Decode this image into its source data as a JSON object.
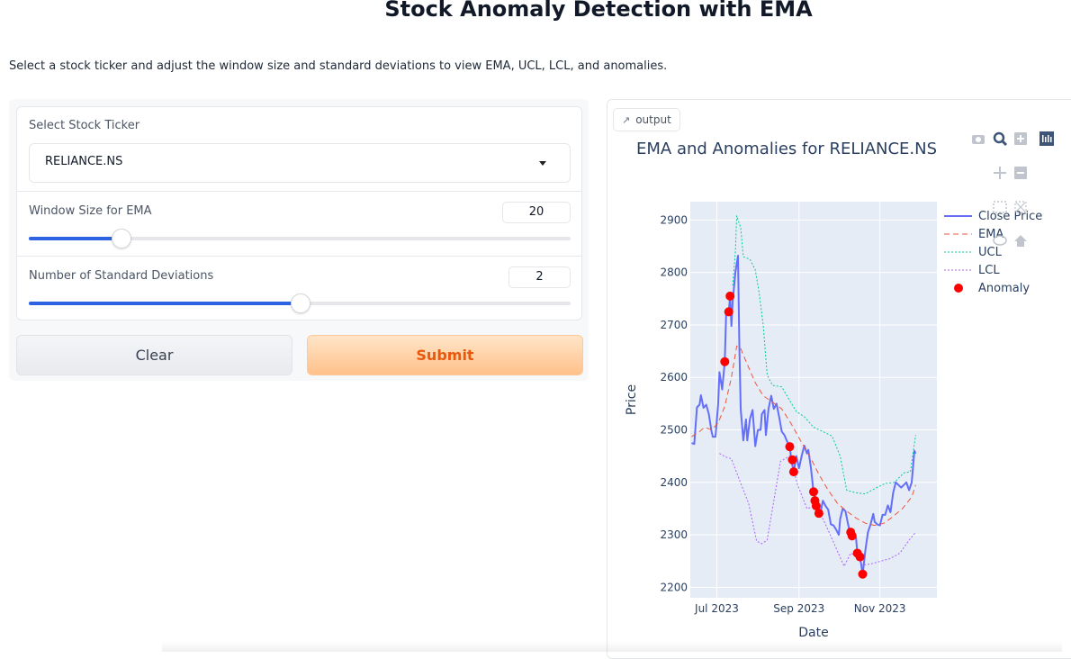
{
  "page": {
    "title": "Stock Anomaly Detection with EMA",
    "subtitle": "Select a stock ticker and adjust the window size and standard deviations to view EMA, UCL, LCL, and anomalies."
  },
  "form": {
    "ticker_label": "Select Stock Ticker",
    "ticker_value": "RELIANCE.NS",
    "window_label": "Window Size for EMA",
    "window_value": "20",
    "window_fraction": 0.17,
    "std_label": "Number of Standard Deviations",
    "std_value": "2",
    "std_fraction": 0.5
  },
  "buttons": {
    "clear": "Clear",
    "submit": "Submit"
  },
  "output": {
    "tab_label": "output",
    "tab_icon": "chart-icon"
  },
  "modebar": {
    "icons": [
      "camera-icon",
      "zoom-icon",
      "zoom-in-icon",
      "autoscale-icon",
      "pan-icon",
      "zoom-out-icon",
      "box-select-icon",
      "reset-axes-icon",
      "lasso-icon",
      "home-icon"
    ]
  },
  "colors": {
    "close": "#636efa",
    "ema": "#ef553b",
    "ucl": "#00cc96",
    "lcl": "#ab63fa",
    "anomaly": "#ff0000",
    "plot_bg": "#e5ecf6",
    "accent": "#2d62e3",
    "submit_text": "#ea580c"
  },
  "chart_data": {
    "type": "line",
    "title": "EMA and Anomalies for RELIANCE.NS",
    "xlabel": "Date",
    "ylabel": "Price",
    "x_range": [
      "2023-06-11",
      "2023-12-14"
    ],
    "ylim": [
      2180,
      2935
    ],
    "x_ticks": [
      {
        "date": "2023-07-01",
        "label": "Jul 2023"
      },
      {
        "date": "2023-09-01",
        "label": "Sep 2023"
      },
      {
        "date": "2023-11-01",
        "label": "Nov 2023"
      }
    ],
    "y_ticks": [
      2200,
      2300,
      2400,
      2500,
      2600,
      2700,
      2800,
      2900
    ],
    "grid": true,
    "legend_position": "right",
    "series": [
      {
        "name": "Close Price",
        "style": "solid",
        "points": [
          [
            "2023-06-12",
            2475
          ],
          [
            "2023-06-14",
            2473
          ],
          [
            "2023-06-16",
            2543
          ],
          [
            "2023-06-18",
            2548
          ],
          [
            "2023-06-19",
            2566
          ],
          [
            "2023-06-21",
            2542
          ],
          [
            "2023-06-23",
            2548
          ],
          [
            "2023-06-25",
            2530
          ],
          [
            "2023-06-27",
            2497
          ],
          [
            "2023-06-28",
            2487
          ],
          [
            "2023-06-30",
            2487
          ],
          [
            "2023-07-02",
            2548
          ],
          [
            "2023-07-03",
            2610
          ],
          [
            "2023-07-05",
            2577
          ],
          [
            "2023-07-07",
            2630
          ],
          [
            "2023-07-08",
            2720
          ],
          [
            "2023-07-10",
            2725
          ],
          [
            "2023-07-11",
            2755
          ],
          [
            "2023-07-12",
            2698
          ],
          [
            "2023-07-13",
            2745
          ],
          [
            "2023-07-15",
            2800
          ],
          [
            "2023-07-17",
            2832
          ],
          [
            "2023-07-18",
            2660
          ],
          [
            "2023-07-19",
            2540
          ],
          [
            "2023-07-21",
            2480
          ],
          [
            "2023-07-23",
            2520
          ],
          [
            "2023-07-24",
            2480
          ],
          [
            "2023-07-26",
            2521
          ],
          [
            "2023-07-28",
            2538
          ],
          [
            "2023-07-30",
            2469
          ],
          [
            "2023-08-01",
            2500
          ],
          [
            "2023-08-03",
            2500
          ],
          [
            "2023-08-04",
            2530
          ],
          [
            "2023-08-06",
            2538
          ],
          [
            "2023-08-07",
            2490
          ],
          [
            "2023-08-09",
            2540
          ],
          [
            "2023-08-11",
            2565
          ],
          [
            "2023-08-13",
            2540
          ],
          [
            "2023-08-15",
            2550
          ],
          [
            "2023-08-17",
            2525
          ],
          [
            "2023-08-19",
            2497
          ],
          [
            "2023-08-21",
            2490
          ],
          [
            "2023-08-23",
            2478
          ],
          [
            "2023-08-25",
            2470
          ],
          [
            "2023-08-26",
            2445
          ],
          [
            "2023-08-28",
            2420
          ],
          [
            "2023-08-30",
            2450
          ],
          [
            "2023-09-01",
            2427
          ],
          [
            "2023-09-03",
            2450
          ],
          [
            "2023-09-05",
            2470
          ],
          [
            "2023-09-07",
            2455
          ],
          [
            "2023-09-08",
            2462
          ],
          [
            "2023-09-10",
            2427
          ],
          [
            "2023-09-12",
            2380
          ],
          [
            "2023-09-14",
            2365
          ],
          [
            "2023-09-15",
            2350
          ],
          [
            "2023-09-17",
            2340
          ],
          [
            "2023-09-19",
            2365
          ],
          [
            "2023-09-21",
            2355
          ],
          [
            "2023-09-23",
            2348
          ],
          [
            "2023-09-25",
            2320
          ],
          [
            "2023-09-27",
            2318
          ],
          [
            "2023-09-29",
            2310
          ],
          [
            "2023-10-01",
            2300
          ],
          [
            "2023-10-02",
            2330
          ],
          [
            "2023-10-04",
            2350
          ],
          [
            "2023-10-06",
            2345
          ],
          [
            "2023-10-08",
            2320
          ],
          [
            "2023-10-10",
            2300
          ],
          [
            "2023-10-12",
            2305
          ],
          [
            "2023-10-14",
            2295
          ],
          [
            "2023-10-15",
            2265
          ],
          [
            "2023-10-17",
            2258
          ],
          [
            "2023-10-19",
            2225
          ],
          [
            "2023-10-21",
            2270
          ],
          [
            "2023-10-23",
            2305
          ],
          [
            "2023-10-25",
            2320
          ],
          [
            "2023-10-27",
            2340
          ],
          [
            "2023-10-28",
            2325
          ],
          [
            "2023-10-30",
            2320
          ],
          [
            "2023-11-01",
            2318
          ],
          [
            "2023-11-03",
            2338
          ],
          [
            "2023-11-05",
            2338
          ],
          [
            "2023-11-07",
            2356
          ],
          [
            "2023-11-09",
            2343
          ],
          [
            "2023-11-11",
            2380
          ],
          [
            "2023-11-13",
            2400
          ],
          [
            "2023-11-15",
            2395
          ],
          [
            "2023-11-17",
            2390
          ],
          [
            "2023-11-19",
            2395
          ],
          [
            "2023-11-21",
            2400
          ],
          [
            "2023-11-23",
            2385
          ],
          [
            "2023-11-25",
            2400
          ],
          [
            "2023-11-27",
            2460
          ],
          [
            "2023-11-28",
            2455
          ]
        ]
      },
      {
        "name": "EMA",
        "style": "dash",
        "points": [
          [
            "2023-06-12",
            2487
          ],
          [
            "2023-06-17",
            2495
          ],
          [
            "2023-06-22",
            2505
          ],
          [
            "2023-06-27",
            2500
          ],
          [
            "2023-07-02",
            2513
          ],
          [
            "2023-07-07",
            2545
          ],
          [
            "2023-07-12",
            2600
          ],
          [
            "2023-07-16",
            2660
          ],
          [
            "2023-07-19",
            2655
          ],
          [
            "2023-07-24",
            2625
          ],
          [
            "2023-07-30",
            2590
          ],
          [
            "2023-08-05",
            2565
          ],
          [
            "2023-08-12",
            2553
          ],
          [
            "2023-08-19",
            2540
          ],
          [
            "2023-08-26",
            2512
          ],
          [
            "2023-09-02",
            2480
          ],
          [
            "2023-09-09",
            2450
          ],
          [
            "2023-09-16",
            2415
          ],
          [
            "2023-09-23",
            2385
          ],
          [
            "2023-09-30",
            2360
          ],
          [
            "2023-10-07",
            2345
          ],
          [
            "2023-10-14",
            2332
          ],
          [
            "2023-10-21",
            2322
          ],
          [
            "2023-10-28",
            2318
          ],
          [
            "2023-11-04",
            2322
          ],
          [
            "2023-11-11",
            2335
          ],
          [
            "2023-11-18",
            2350
          ],
          [
            "2023-11-25",
            2372
          ],
          [
            "2023-11-28",
            2395
          ]
        ]
      },
      {
        "name": "UCL",
        "style": "dot",
        "points": [
          [
            "2023-07-13",
            2775
          ],
          [
            "2023-07-15",
            2840
          ],
          [
            "2023-07-16",
            2908
          ],
          [
            "2023-07-19",
            2885
          ],
          [
            "2023-07-21",
            2830
          ],
          [
            "2023-07-26",
            2825
          ],
          [
            "2023-07-30",
            2805
          ],
          [
            "2023-08-02",
            2760
          ],
          [
            "2023-08-05",
            2700
          ],
          [
            "2023-08-08",
            2605
          ],
          [
            "2023-08-12",
            2585
          ],
          [
            "2023-08-19",
            2582
          ],
          [
            "2023-08-24",
            2560
          ],
          [
            "2023-08-30",
            2535
          ],
          [
            "2023-09-05",
            2525
          ],
          [
            "2023-09-12",
            2505
          ],
          [
            "2023-09-19",
            2497
          ],
          [
            "2023-09-26",
            2488
          ],
          [
            "2023-10-02",
            2450
          ],
          [
            "2023-10-07",
            2385
          ],
          [
            "2023-10-14",
            2380
          ],
          [
            "2023-10-21",
            2378
          ],
          [
            "2023-10-28",
            2388
          ],
          [
            "2023-11-05",
            2398
          ],
          [
            "2023-11-12",
            2400
          ],
          [
            "2023-11-19",
            2418
          ],
          [
            "2023-11-24",
            2420
          ],
          [
            "2023-11-28",
            2490
          ]
        ]
      },
      {
        "name": "LCL",
        "style": "dot",
        "points": [
          [
            "2023-07-03",
            2455
          ],
          [
            "2023-07-08",
            2448
          ],
          [
            "2023-07-12",
            2445
          ],
          [
            "2023-07-18",
            2405
          ],
          [
            "2023-07-25",
            2360
          ],
          [
            "2023-07-31",
            2288
          ],
          [
            "2023-08-04",
            2283
          ],
          [
            "2023-08-08",
            2290
          ],
          [
            "2023-08-14",
            2380
          ],
          [
            "2023-08-18",
            2440
          ],
          [
            "2023-08-25",
            2450
          ],
          [
            "2023-08-31",
            2395
          ],
          [
            "2023-09-07",
            2350
          ],
          [
            "2023-09-14",
            2355
          ],
          [
            "2023-09-21",
            2320
          ],
          [
            "2023-09-28",
            2280
          ],
          [
            "2023-10-05",
            2240
          ],
          [
            "2023-10-10",
            2265
          ],
          [
            "2023-10-14",
            2260
          ],
          [
            "2023-10-19",
            2242
          ],
          [
            "2023-10-26",
            2245
          ],
          [
            "2023-11-02",
            2250
          ],
          [
            "2023-11-09",
            2255
          ],
          [
            "2023-11-16",
            2265
          ],
          [
            "2023-11-23",
            2290
          ],
          [
            "2023-11-28",
            2305
          ]
        ]
      }
    ],
    "anomalies": {
      "name": "Anomaly",
      "points": [
        [
          "2023-07-07",
          2630
        ],
        [
          "2023-07-10",
          2725
        ],
        [
          "2023-07-11",
          2755
        ],
        [
          "2023-08-25",
          2468
        ],
        [
          "2023-08-27",
          2443
        ],
        [
          "2023-08-28",
          2420
        ],
        [
          "2023-09-12",
          2382
        ],
        [
          "2023-09-13",
          2365
        ],
        [
          "2023-09-14",
          2355
        ],
        [
          "2023-09-16",
          2341
        ],
        [
          "2023-10-10",
          2305
        ],
        [
          "2023-10-11",
          2298
        ],
        [
          "2023-10-15",
          2265
        ],
        [
          "2023-10-17",
          2258
        ],
        [
          "2023-10-19",
          2225
        ]
      ]
    }
  }
}
